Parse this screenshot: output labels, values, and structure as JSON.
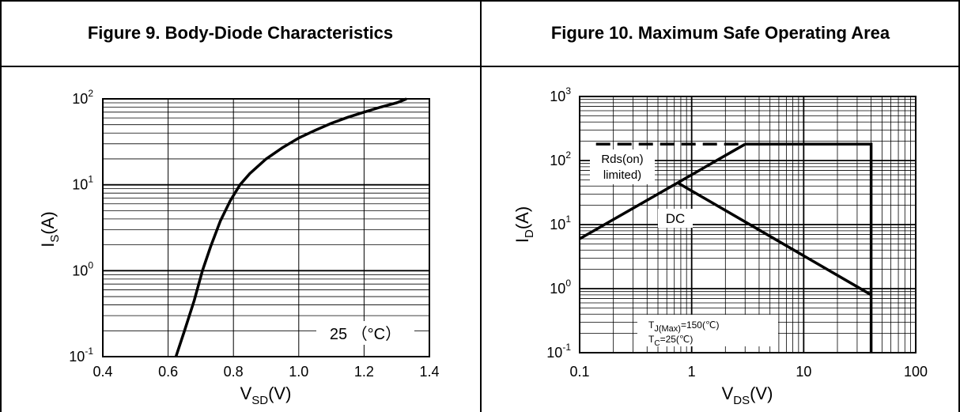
{
  "table": {
    "headers": [
      "Figure 9. Body-Diode Characteristics",
      "Figure 10. Maximum Safe Operating Area"
    ]
  },
  "chart_data": [
    {
      "type": "line",
      "title": "Figure 9. Body-Diode Characteristics",
      "xlabel": {
        "main": "V",
        "sub": "SD",
        "tail": "(V)"
      },
      "ylabel": {
        "main": "I",
        "sub": "S",
        "tail": "(A)"
      },
      "xlim": [
        0.4,
        1.4
      ],
      "ylim": [
        0.1,
        100
      ],
      "yscale": "log",
      "x_ticks": [
        "0.4",
        "0.6",
        "0.8",
        "1.0",
        "1.2",
        "1.4"
      ],
      "y_ticks": [
        {
          "base": "10",
          "exp": "-1"
        },
        {
          "base": "10",
          "exp": "0"
        },
        {
          "base": "10",
          "exp": "1"
        },
        {
          "base": "10",
          "exp": "2"
        }
      ],
      "grid": true,
      "annotations": [
        "25 （°C）"
      ],
      "series": [
        {
          "x": [
            0.624,
            0.65,
            0.68,
            0.705,
            0.73,
            0.76,
            0.79,
            0.82,
            0.85,
            0.9,
            0.95,
            1.0,
            1.05,
            1.1,
            1.15,
            1.2,
            1.25,
            1.3,
            1.33
          ],
          "y": [
            0.1,
            0.2,
            0.45,
            1.0,
            1.9,
            3.8,
            6.5,
            10,
            13.5,
            20,
            27,
            35,
            43,
            52,
            61,
            70,
            80,
            90,
            100
          ]
        }
      ]
    },
    {
      "type": "line",
      "title": "Figure 10. Maximum Safe Operating Area",
      "xlabel": {
        "main": "V",
        "sub": "DS",
        "tail": "(V)"
      },
      "ylabel": {
        "main": "I",
        "sub": "D",
        "tail": "(A)"
      },
      "xscale": "log",
      "yscale": "log",
      "xlim": [
        0.1,
        100
      ],
      "ylim": [
        0.1,
        1000
      ],
      "x_ticks": [
        "0.1",
        "1",
        "10",
        "100"
      ],
      "y_ticks": [
        {
          "base": "10",
          "exp": "-1"
        },
        {
          "base": "10",
          "exp": "0"
        },
        {
          "base": "10",
          "exp": "1"
        },
        {
          "base": "10",
          "exp": "2"
        },
        {
          "base": "10",
          "exp": "3"
        }
      ],
      "grid": true,
      "annotations": {
        "rds_line1": "Rds(on)",
        "rds_line2": "limited)",
        "dc": "DC",
        "tj": {
          "main": "T",
          "sub": "J(Max)",
          "tail": "=150(℃)"
        },
        "tc": {
          "main": "T",
          "sub": "C",
          "tail": "=25(℃)"
        }
      },
      "series": [
        {
          "style": "dashed",
          "x": [
            0.14,
            3.0
          ],
          "y": [
            180,
            180
          ]
        },
        {
          "style": "solid",
          "x": [
            0.1,
            3.0
          ],
          "y": [
            6,
            180
          ]
        },
        {
          "style": "solid",
          "x": [
            3.0,
            40,
            40
          ],
          "y": [
            180,
            180,
            0.1
          ]
        },
        {
          "style": "solid",
          "x": [
            0.75,
            40
          ],
          "y": [
            45,
            0.8
          ]
        }
      ]
    }
  ]
}
